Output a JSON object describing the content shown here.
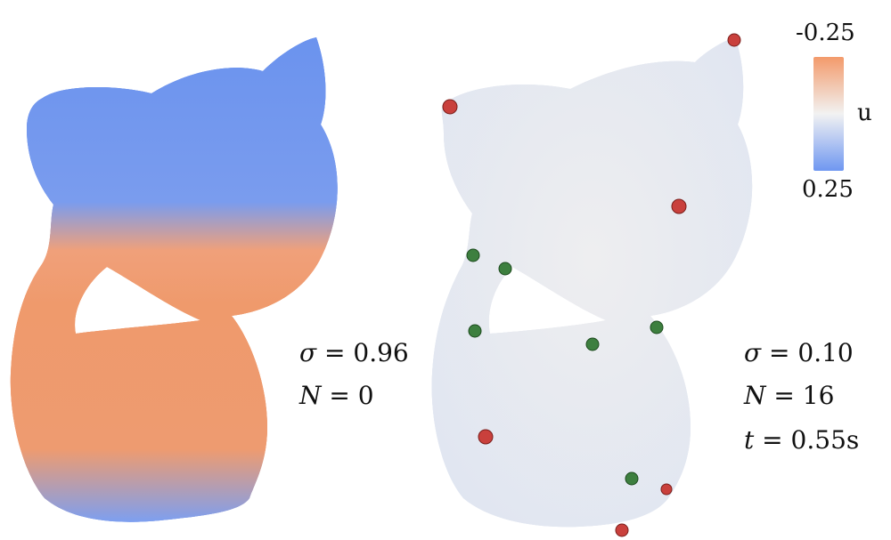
{
  "colorbar": {
    "top_label": "-0.25",
    "bottom_label": "0.25",
    "variable": "u",
    "colors": {
      "top": "#f39a6b",
      "middle": "#f2f2f2",
      "bottom": "#6f97f1"
    }
  },
  "left_model": {
    "sigma_symbol": "σ",
    "sigma_value": "= 0.96",
    "n_symbol": "N",
    "n_value": "= 0"
  },
  "right_model": {
    "sigma_symbol": "σ",
    "sigma_value": "= 0.10",
    "n_symbol": "N",
    "n_value": "= 16",
    "t_symbol": "t",
    "t_value": "= 0.55s"
  },
  "marker_colors": {
    "red": "#c9403c",
    "green": "#3d7f3f",
    "cell_lines": "#1f5c55"
  }
}
